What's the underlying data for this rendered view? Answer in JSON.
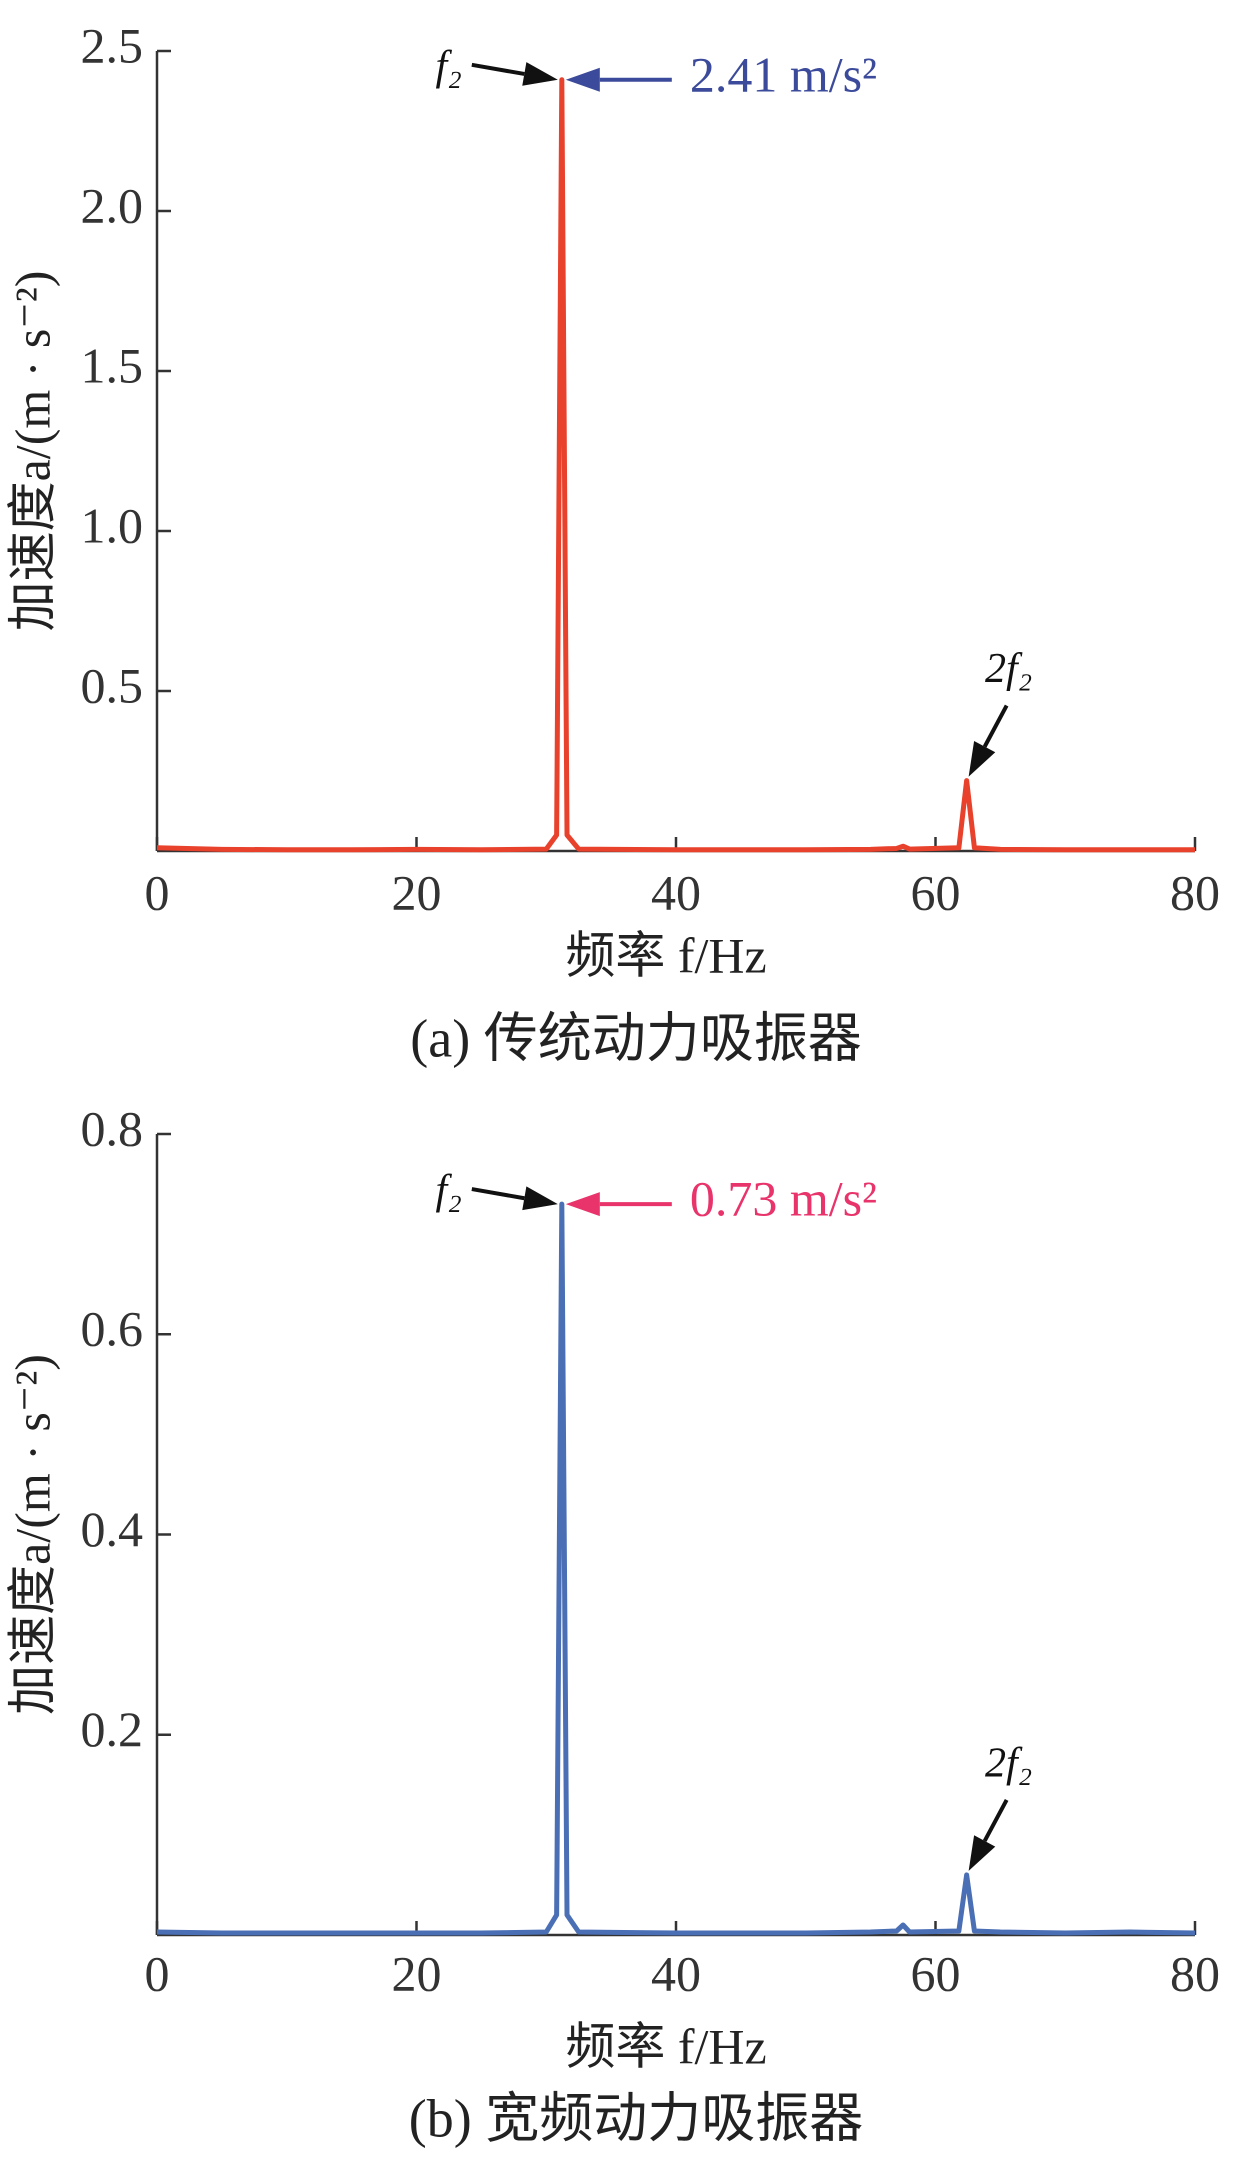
{
  "chart_data": [
    {
      "type": "line",
      "color": "#e8412c",
      "x": [
        0,
        5,
        10,
        15,
        20,
        25,
        30,
        30.8,
        31.2,
        31.6,
        32.5,
        40,
        50,
        55,
        57,
        57.5,
        58,
        61.8,
        62.4,
        63,
        65,
        70,
        75,
        80
      ],
      "values": [
        0.01,
        0.005,
        0.004,
        0.004,
        0.005,
        0.004,
        0.006,
        0.05,
        2.41,
        0.05,
        0.006,
        0.004,
        0.004,
        0.005,
        0.008,
        0.015,
        0.006,
        0.01,
        0.22,
        0.01,
        0.005,
        0.004,
        0.004,
        0.004
      ],
      "xlim": [
        0,
        80
      ],
      "xticks": [
        0,
        20,
        40,
        60,
        80
      ],
      "ylim": [
        0,
        2.5
      ],
      "yticks": [
        0.5,
        {
          "value": 1,
          "label": "1.0"
        },
        1.5,
        {
          "value": 2,
          "label": "2.0"
        },
        2.5
      ],
      "xlabel": "频率 f/Hz",
      "ylabel": "加速度a/(m · s⁻²)",
      "peak_label": "2.41 m/s²",
      "peak_label_color": "#3b4a9a",
      "annotations": [
        "f₂",
        "2f₂"
      ],
      "caption": "(a) 传统动力吸振器"
    },
    {
      "type": "line",
      "color": "#4a6fb5",
      "x": [
        0,
        5,
        10,
        15,
        20,
        25,
        30,
        30.8,
        31.2,
        31.6,
        32.5,
        40,
        50,
        55,
        57,
        57.5,
        58,
        61.8,
        62.4,
        63,
        65,
        70,
        75,
        80
      ],
      "values": [
        0.003,
        0.002,
        0.002,
        0.002,
        0.002,
        0.002,
        0.003,
        0.02,
        0.73,
        0.02,
        0.003,
        0.002,
        0.002,
        0.003,
        0.004,
        0.01,
        0.003,
        0.004,
        0.06,
        0.004,
        0.003,
        0.002,
        0.003,
        0.002
      ],
      "xlim": [
        0,
        80
      ],
      "xticks": [
        0,
        20,
        40,
        60,
        80
      ],
      "ylim": [
        0,
        0.8
      ],
      "yticks": [
        0.2,
        0.4,
        0.6,
        0.8
      ],
      "xlabel": "频率 f/Hz",
      "ylabel": "加速度a/(m · s⁻²)",
      "peak_label": "0.73 m/s²",
      "peak_label_color": "#e8336b",
      "annotations": [
        "f₂",
        "2f₂"
      ],
      "caption": "(b) 宽频动力吸振器"
    }
  ]
}
